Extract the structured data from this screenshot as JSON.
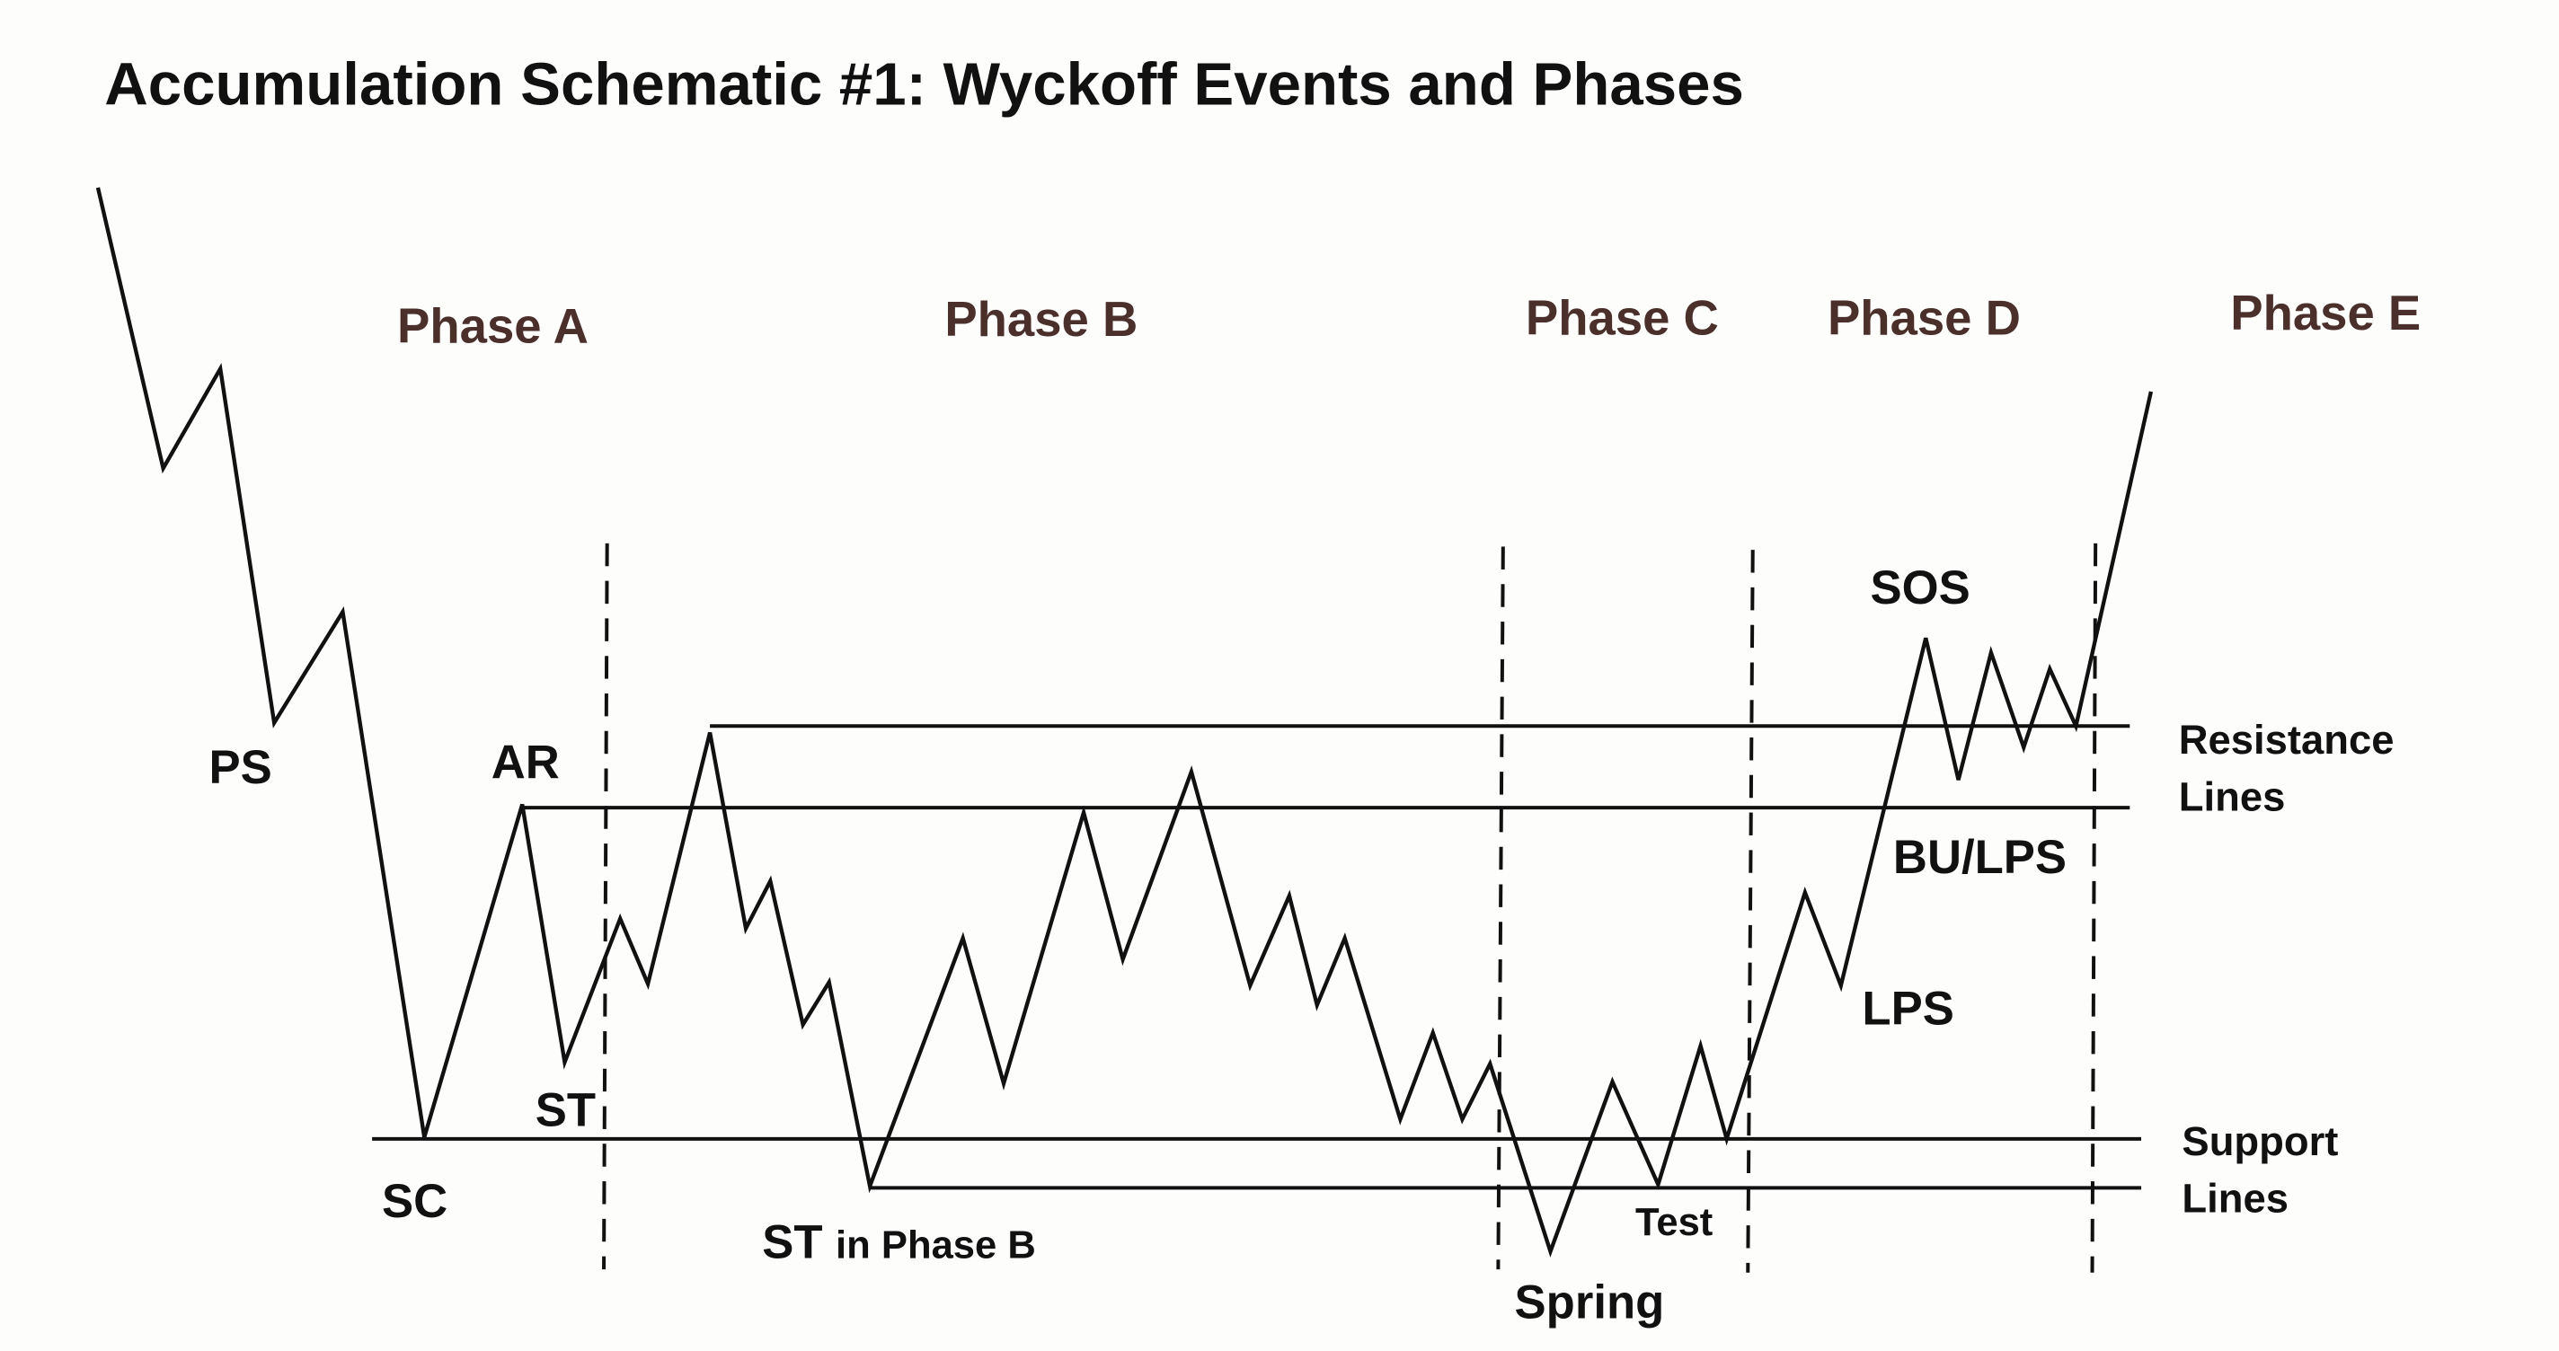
{
  "title": "Accumulation Schematic #1: Wyckoff Events and Phases",
  "phases": [
    "Phase A",
    "Phase B",
    "Phase C",
    "Phase D",
    "Phase E"
  ],
  "events": {
    "ps": "PS",
    "ar": "AR",
    "sc": "SC",
    "st": "ST",
    "st_phase_b": {
      "main": "ST",
      "sub": "in Phase B"
    },
    "spring": "Spring",
    "test": "Test",
    "lps": "LPS",
    "sos": "SOS",
    "bu_lps": "BU/LPS"
  },
  "line_labels": {
    "resistance": [
      "Resistance",
      "Lines"
    ],
    "support": [
      "Support",
      "Lines"
    ]
  }
}
